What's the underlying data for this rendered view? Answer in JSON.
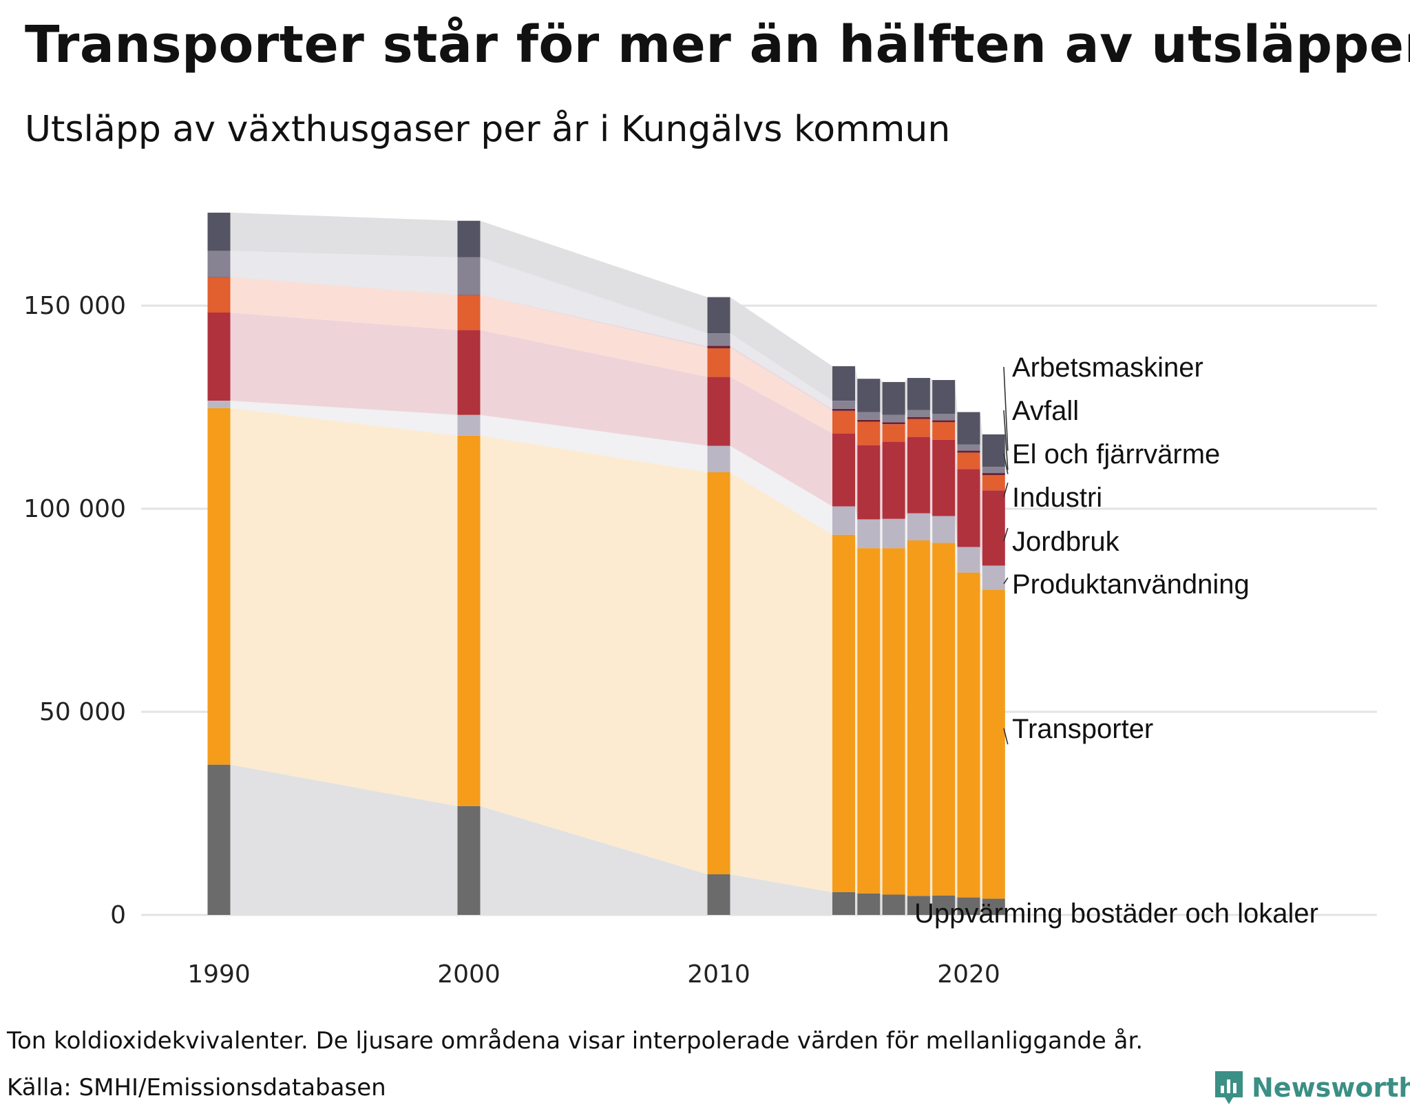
{
  "header": {
    "title": "Transporter står för mer än hälften av utsläppen",
    "subtitle": "Utsläpp av växthusgaser per år i Kungälvs kommun"
  },
  "footer": {
    "note": "Ton koldioxidekvivalenter. De ljusare områdena visar interpolerade värden för mellanliggande år.",
    "source": "Källa: SMHI/Emissionsdatabasen",
    "brand": "Newsworthy"
  },
  "chart_data": {
    "type": "bar",
    "stacked": true,
    "x": [
      1990,
      2000,
      2010,
      2015,
      2016,
      2017,
      2018,
      2019,
      2020,
      2021
    ],
    "x_ticks": [
      1990,
      2000,
      2010,
      2020
    ],
    "x_tick_labels": [
      "1990",
      "2000",
      "2010",
      "2020"
    ],
    "y_ticks": [
      0,
      50000,
      100000,
      150000
    ],
    "y_tick_labels": [
      "0",
      "50 000",
      "100 000",
      "150 000"
    ],
    "ylim": [
      0,
      175000
    ],
    "grid": true,
    "legend": "direct labels at right of last bar",
    "interpolated_areas_between_years": true,
    "series": [
      {
        "name": "Uppvärming bostäder och lokaler",
        "color": "#6b6b6b",
        "light": "#e1e1e3",
        "values": [
          37000,
          26800,
          10000,
          5600,
          5300,
          5000,
          4700,
          4800,
          4300,
          4000
        ]
      },
      {
        "name": "Transporter",
        "color": "#f59c1a",
        "light": "#fcebd0",
        "values": [
          87800,
          91200,
          99000,
          88000,
          85000,
          85300,
          87500,
          86800,
          80000,
          76000
        ]
      },
      {
        "name": "Produktanvändning",
        "color": "#bab6c4",
        "light": "#f1f0f3",
        "values": [
          1800,
          5100,
          6500,
          7000,
          7100,
          7200,
          6700,
          6600,
          6300,
          6000
        ]
      },
      {
        "name": "Jordbruk",
        "color": "#b0323d",
        "light": "#eed4d9",
        "values": [
          21700,
          20900,
          17000,
          18000,
          18300,
          19000,
          18800,
          18800,
          19200,
          18500
        ]
      },
      {
        "name": "Industri",
        "color": "#e25f30",
        "light": "#fbdfd6",
        "values": [
          8700,
          8600,
          7000,
          5500,
          5700,
          4300,
          4400,
          4300,
          4000,
          3800
        ]
      },
      {
        "name": "El och fjärrvärme",
        "color": "#6b1f2f",
        "light": "#ecdadd",
        "values": [
          100,
          100,
          600,
          500,
          500,
          500,
          500,
          500,
          500,
          500
        ]
      },
      {
        "name": "Avfall",
        "color": "#878393",
        "light": "#e9e8ec",
        "values": [
          6400,
          9200,
          3100,
          2000,
          1900,
          1800,
          1700,
          1600,
          1500,
          1500
        ]
      },
      {
        "name": "Arbetsmaskiner",
        "color": "#555464",
        "light": "#e0dfe1",
        "values": [
          9400,
          9000,
          8900,
          8500,
          8200,
          8100,
          7900,
          8300,
          8000,
          8000
        ]
      }
    ]
  }
}
